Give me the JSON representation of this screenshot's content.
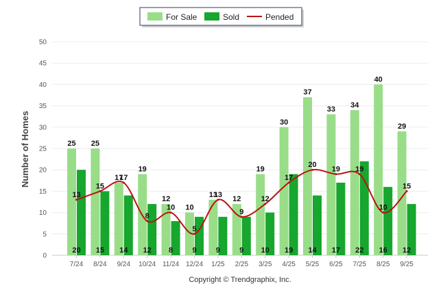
{
  "chart_data": {
    "type": "bar",
    "ylabel": "Number of Homes",
    "xlabel": "",
    "ylim": [
      0,
      50
    ],
    "yticks": [
      0,
      5,
      10,
      15,
      20,
      25,
      30,
      35,
      40,
      45,
      50
    ],
    "grid": true,
    "legend_position": "top-center",
    "categories": [
      "7/24",
      "8/24",
      "9/24",
      "10/24",
      "11/24",
      "12/24",
      "1/25",
      "2/25",
      "3/25",
      "4/25",
      "5/25",
      "6/25",
      "7/25",
      "8/25",
      "9/25"
    ],
    "series": [
      {
        "name": "For Sale",
        "type": "bar",
        "color": "#99dd88",
        "values": [
          25,
          25,
          17,
          19,
          12,
          10,
          13,
          12,
          19,
          30,
          37,
          33,
          34,
          40,
          29
        ]
      },
      {
        "name": "Sold",
        "type": "bar",
        "color": "#17a62e",
        "values": [
          20,
          15,
          14,
          12,
          8,
          9,
          9,
          9,
          10,
          19,
          14,
          17,
          22,
          16,
          12
        ]
      },
      {
        "name": "Pended",
        "type": "line",
        "color": "#bb1111",
        "values": [
          13,
          15,
          17,
          8,
          10,
          5,
          13,
          9,
          12,
          17,
          20,
          19,
          19,
          10,
          15
        ]
      }
    ]
  },
  "footer": {
    "credit": "Copyright © Trendgraphix, Inc."
  }
}
